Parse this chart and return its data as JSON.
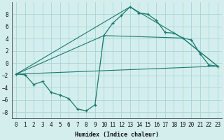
{
  "xlabel": "Humidex (Indice chaleur)",
  "bg_color": "#d4eeee",
  "grid_color": "#aad4d4",
  "line_color": "#1a7a6e",
  "xlim": [
    -0.5,
    23.5
  ],
  "ylim": [
    -9,
    10
  ],
  "yticks": [
    -8,
    -6,
    -4,
    -2,
    0,
    2,
    4,
    6,
    8
  ],
  "xticks": [
    0,
    1,
    2,
    3,
    4,
    5,
    6,
    7,
    8,
    9,
    10,
    11,
    12,
    13,
    14,
    15,
    16,
    17,
    18,
    19,
    20,
    21,
    22,
    23
  ],
  "line_detail": {
    "x": [
      0,
      1,
      2,
      3,
      4,
      5,
      6,
      7,
      8,
      9,
      10,
      11,
      12,
      13,
      14,
      15,
      16,
      17,
      18,
      19,
      20,
      21,
      22,
      23
    ],
    "y": [
      -1.8,
      -1.9,
      -3.5,
      -3.0,
      -4.8,
      -5.2,
      -5.8,
      -7.5,
      -7.8,
      -6.8,
      4.5,
      6.5,
      7.8,
      9.2,
      8.2,
      8.0,
      7.0,
      5.0,
      4.9,
      4.1,
      3.8,
      1.5,
      -0.3,
      -0.5
    ]
  },
  "line_straight": {
    "x": [
      0,
      23
    ],
    "y": [
      -1.8,
      -0.5
    ]
  },
  "line_mid1": {
    "x": [
      0,
      10,
      19,
      23
    ],
    "y": [
      -1.8,
      4.5,
      4.1,
      -0.5
    ]
  },
  "line_mid2": {
    "x": [
      0,
      13,
      19,
      23
    ],
    "y": [
      -1.8,
      9.2,
      4.1,
      -0.5
    ]
  }
}
